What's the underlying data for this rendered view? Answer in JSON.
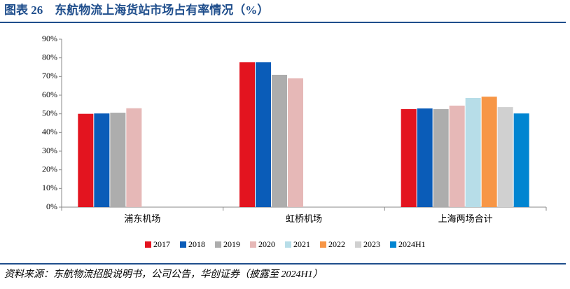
{
  "chart_data": {
    "type": "bar",
    "title": "图表 26　东航物流上海货站市场占有率情况（%）",
    "source": "资料来源：东航物流招股说明书，公司公告，华创证券（披露至 2024H1）",
    "categories": [
      "浦东机场",
      "虹桥机场",
      "上海两场合计"
    ],
    "series": [
      {
        "name": "2017",
        "color": "#e3141f",
        "values": [
          50,
          77.6,
          52.5
        ]
      },
      {
        "name": "2018",
        "color": "#0a5cb8",
        "values": [
          50.2,
          77.6,
          52.9
        ]
      },
      {
        "name": "2019",
        "color": "#adadad",
        "values": [
          50.6,
          70.9,
          52.5
        ]
      },
      {
        "name": "2020",
        "color": "#e6b8b7",
        "values": [
          53,
          69,
          54.4
        ]
      },
      {
        "name": "2021",
        "color": "#b7dde8",
        "values": [
          null,
          null,
          58.5
        ]
      },
      {
        "name": "2022",
        "color": "#f79646",
        "values": [
          null,
          null,
          59.2
        ]
      },
      {
        "name": "2023",
        "color": "#d0d0d0",
        "values": [
          null,
          null,
          53.6
        ]
      },
      {
        "name": "2024H1",
        "color": "#0085d1",
        "values": [
          null,
          null,
          50.2
        ]
      }
    ],
    "ylim": [
      0,
      90
    ],
    "yticks": [
      {
        "value": 0,
        "label": "0%"
      },
      {
        "value": 10,
        "label": "10%"
      },
      {
        "value": 20,
        "label": "20%"
      },
      {
        "value": 30,
        "label": "30%"
      },
      {
        "value": 40,
        "label": "40%"
      },
      {
        "value": 50,
        "label": "50%"
      },
      {
        "value": 60,
        "label": "60%"
      },
      {
        "value": 70,
        "label": "70%"
      },
      {
        "value": 80,
        "label": "80%"
      },
      {
        "value": 90,
        "label": "90%"
      }
    ],
    "legend": "bottom"
  }
}
